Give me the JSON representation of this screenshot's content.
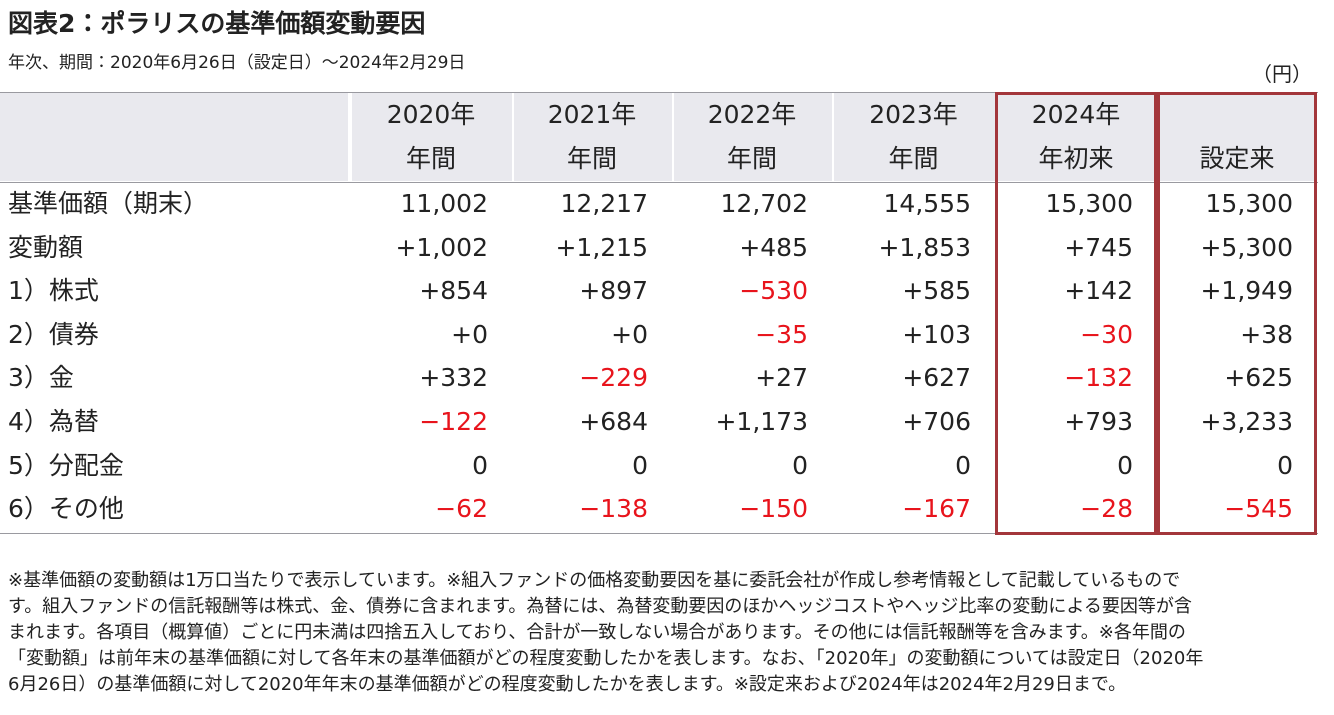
{
  "header": {
    "title": "図表2：ポラリスの基準価額変動要因",
    "subtitle": "年次、期間：2020年6月26日（設定日）～2024年2月29日",
    "unit": "（円）"
  },
  "table": {
    "columns": [
      [
        "2020年",
        "年間"
      ],
      [
        "2021年",
        "年間"
      ],
      [
        "2022年",
        "年間"
      ],
      [
        "2023年",
        "年間"
      ],
      [
        "2024年",
        "年初来"
      ],
      [
        "設定来"
      ]
    ],
    "rows": [
      [
        "基準価額（期末）",
        "11,002",
        "12,217",
        "12,702",
        "14,555",
        "15,300",
        "15,300"
      ],
      [
        "変動額",
        "+1,002",
        "+1,215",
        "+485",
        "+1,853",
        "+745",
        "+5,300"
      ],
      [
        "1）株式",
        "+854",
        "+897",
        "−530",
        "+585",
        "+142",
        "+1,949"
      ],
      [
        "2）債券",
        "+0",
        "+0",
        "−35",
        "+103",
        "−30",
        "+38"
      ],
      [
        "3）金",
        "+332",
        "−229",
        "+27",
        "+627",
        "−132",
        "+625"
      ],
      [
        "4）為替",
        "−122",
        "+684",
        "+1,173",
        "+706",
        "+793",
        "+3,233"
      ],
      [
        "5）分配金",
        "0",
        "0",
        "0",
        "0",
        "0",
        "0"
      ],
      [
        "6）その他",
        "−62",
        "−138",
        "−150",
        "−167",
        "−28",
        "−545"
      ]
    ]
  },
  "note": [
    "※基準価額の変動額は1万口当たりで表示しています。※組入ファンドの価格変動要因を基に委託会社が作成し参考情報として記載しているもので",
    "す。組入ファンドの信託報酬等は株式、金、債券に含まれます。為替には、為替変動要因のほかヘッジコストやヘッジ比率の変動による要因等が含",
    "まれます。各項目（概算値）ごとに円未満は四捨五入しており、合計が一致しない場合があります。その他には信託報酬等を含みます。※各年間の",
    "「変動額」は前年末の基準価額に対して各年末の基準価額がどの程度変動したかを表します。なお、「2020年」の変動額については設定日（2020年",
    "6月26日）の基準価額に対して2020年年末の基準価額がどの程度変動したかを表します。※設定来および2024年は2024年2月29日まで。"
  ]
}
